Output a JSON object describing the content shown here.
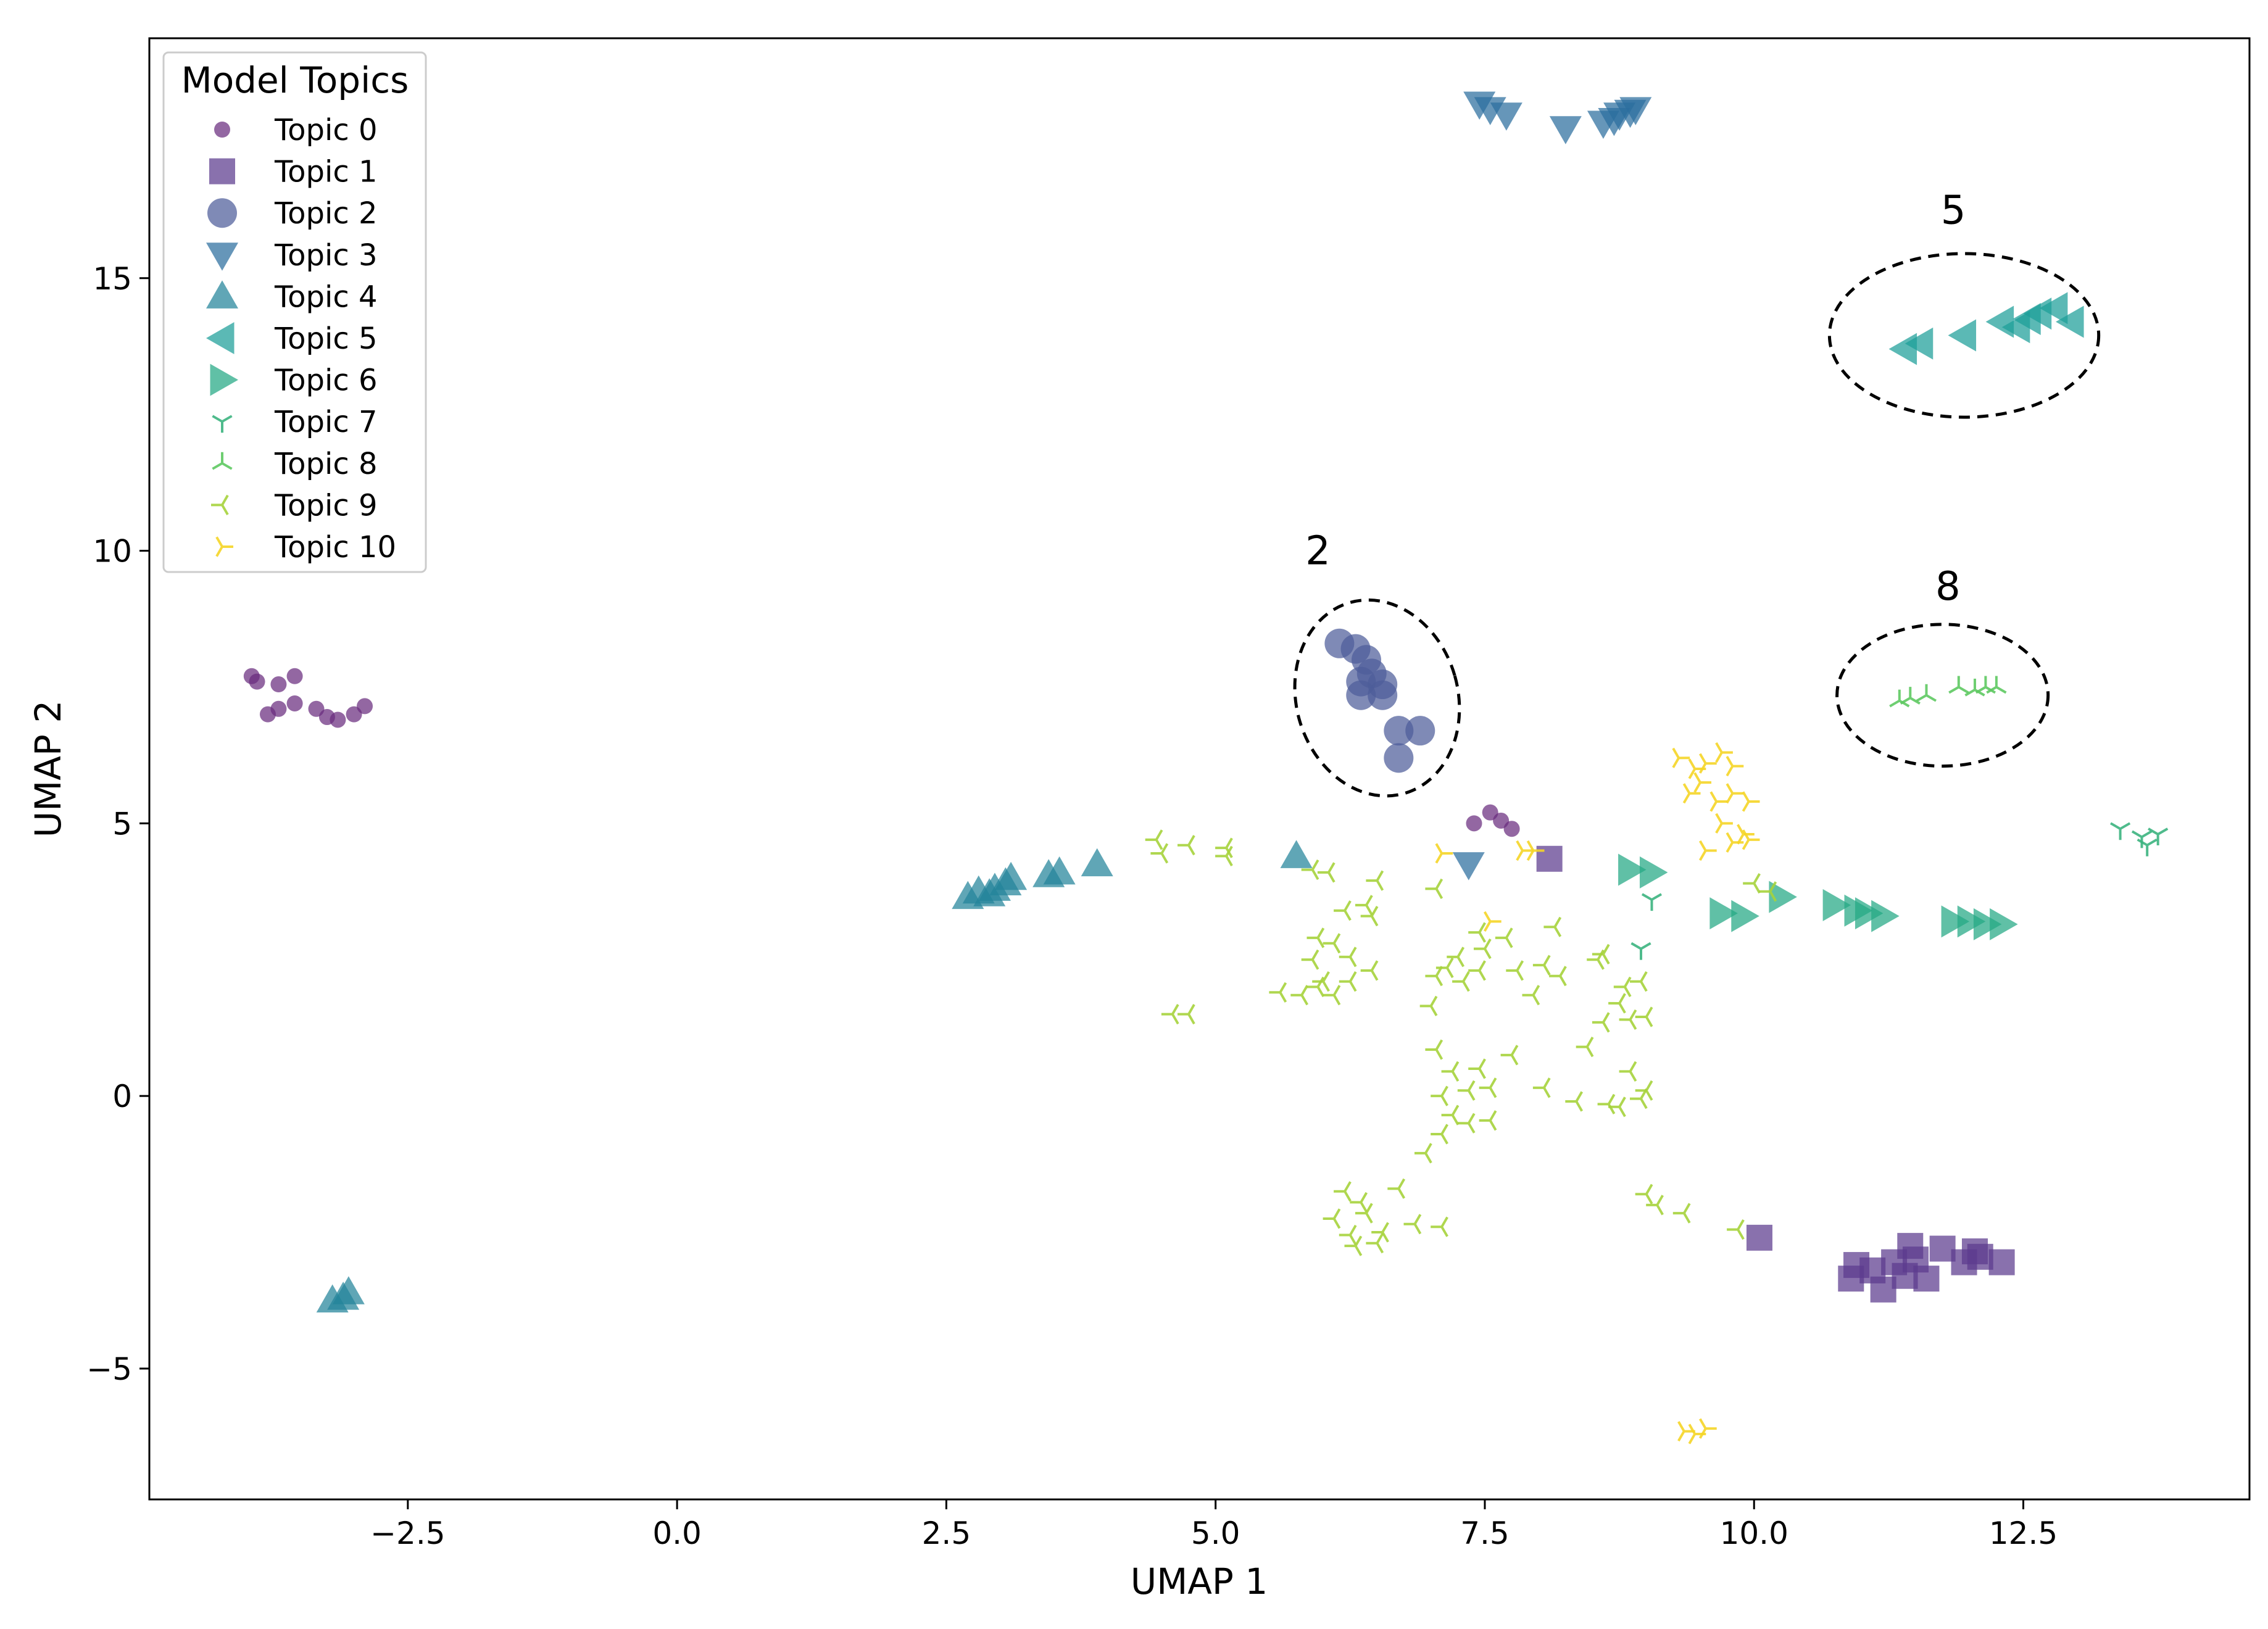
{
  "chart_data": {
    "type": "scatter",
    "xlabel": "UMAP 1",
    "ylabel": "UMAP 2",
    "xlim": [
      -4.9,
      14.6
    ],
    "ylim": [
      -7.4,
      19.4
    ],
    "xticks": [
      -2.5,
      0.0,
      2.5,
      5.0,
      7.5,
      10.0,
      12.5
    ],
    "xtick_labels": [
      "−2.5",
      "0.0",
      "2.5",
      "5.0",
      "7.5",
      "10.0",
      "12.5"
    ],
    "yticks": [
      -5,
      0,
      5,
      10,
      15
    ],
    "ytick_labels": [
      "−5",
      "0",
      "5",
      "10",
      "15"
    ],
    "legend": {
      "title": "Model Topics",
      "placement": "top-left"
    },
    "series": [
      {
        "name": "Topic 0",
        "marker": "circle-small",
        "color": "#6a2c7e",
        "points": [
          [
            -3.95,
            7.7
          ],
          [
            -3.9,
            7.6
          ],
          [
            -3.7,
            7.55
          ],
          [
            -3.55,
            7.7
          ],
          [
            -3.8,
            7.0
          ],
          [
            -3.7,
            7.1
          ],
          [
            -3.55,
            7.2
          ],
          [
            -3.35,
            7.1
          ],
          [
            -3.25,
            6.95
          ],
          [
            -3.15,
            6.9
          ],
          [
            -3.0,
            7.0
          ],
          [
            -2.9,
            7.15
          ],
          [
            7.4,
            5.0
          ],
          [
            7.55,
            5.2
          ],
          [
            7.65,
            5.05
          ],
          [
            7.75,
            4.9
          ]
        ]
      },
      {
        "name": "Topic 1",
        "marker": "square",
        "color": "#5b3a8e",
        "points": [
          [
            8.1,
            4.35
          ],
          [
            10.05,
            -2.6
          ],
          [
            10.95,
            -3.1
          ],
          [
            10.9,
            -3.35
          ],
          [
            11.1,
            -3.2
          ],
          [
            11.2,
            -3.55
          ],
          [
            11.3,
            -3.05
          ],
          [
            11.4,
            -3.3
          ],
          [
            11.45,
            -2.75
          ],
          [
            11.5,
            -3.0
          ],
          [
            11.6,
            -3.35
          ],
          [
            11.75,
            -2.8
          ],
          [
            11.95,
            -3.05
          ],
          [
            12.05,
            -2.85
          ],
          [
            12.1,
            -2.95
          ],
          [
            12.3,
            -3.05
          ]
        ]
      },
      {
        "name": "Topic 2",
        "marker": "circle",
        "color": "#4e5d9a",
        "points": [
          [
            6.15,
            8.3
          ],
          [
            6.3,
            8.2
          ],
          [
            6.4,
            8.0
          ],
          [
            6.45,
            7.75
          ],
          [
            6.35,
            7.6
          ],
          [
            6.55,
            7.55
          ],
          [
            6.35,
            7.35
          ],
          [
            6.55,
            7.35
          ],
          [
            6.7,
            6.7
          ],
          [
            6.9,
            6.7
          ],
          [
            6.7,
            6.2
          ]
        ]
      },
      {
        "name": "Topic 3",
        "marker": "triangle-down",
        "color": "#2b6e9e",
        "points": [
          [
            7.45,
            18.2
          ],
          [
            7.55,
            18.1
          ],
          [
            7.7,
            18.0
          ],
          [
            8.25,
            17.75
          ],
          [
            8.6,
            17.85
          ],
          [
            8.7,
            17.9
          ],
          [
            8.75,
            18.0
          ],
          [
            8.85,
            18.05
          ],
          [
            8.9,
            18.1
          ],
          [
            7.35,
            4.25
          ]
        ]
      },
      {
        "name": "Topic 4",
        "marker": "triangle-up",
        "color": "#23849a",
        "points": [
          [
            2.7,
            3.65
          ],
          [
            2.8,
            3.75
          ],
          [
            2.9,
            3.7
          ],
          [
            2.95,
            3.8
          ],
          [
            3.05,
            3.9
          ],
          [
            3.1,
            4.0
          ],
          [
            3.45,
            4.05
          ],
          [
            3.55,
            4.1
          ],
          [
            3.9,
            4.25
          ],
          [
            5.75,
            4.4
          ],
          [
            -3.2,
            -3.75
          ],
          [
            -3.1,
            -3.7
          ],
          [
            -3.05,
            -3.6
          ]
        ]
      },
      {
        "name": "Topic 5",
        "marker": "triangle-left",
        "color": "#1c9e98",
        "points": [
          [
            11.4,
            13.7
          ],
          [
            11.55,
            13.8
          ],
          [
            11.95,
            13.95
          ],
          [
            12.3,
            14.2
          ],
          [
            12.45,
            14.1
          ],
          [
            12.55,
            14.25
          ],
          [
            12.65,
            14.35
          ],
          [
            12.8,
            14.45
          ],
          [
            12.95,
            14.2
          ]
        ]
      },
      {
        "name": "Topic 6",
        "marker": "triangle-right",
        "color": "#22a884",
        "points": [
          [
            8.85,
            4.15
          ],
          [
            9.05,
            4.1
          ],
          [
            9.7,
            3.35
          ],
          [
            9.9,
            3.3
          ],
          [
            10.25,
            3.65
          ],
          [
            10.75,
            3.5
          ],
          [
            10.95,
            3.4
          ],
          [
            11.05,
            3.35
          ],
          [
            11.2,
            3.3
          ],
          [
            11.85,
            3.2
          ],
          [
            12.0,
            3.2
          ],
          [
            12.15,
            3.15
          ],
          [
            12.3,
            3.15
          ]
        ]
      },
      {
        "name": "Topic 7",
        "marker": "tri-down",
        "color": "#3cb47f",
        "points": [
          [
            13.4,
            4.9
          ],
          [
            13.6,
            4.75
          ],
          [
            13.75,
            4.8
          ],
          [
            13.65,
            4.6
          ],
          [
            9.05,
            3.6
          ],
          [
            8.95,
            2.7
          ]
        ]
      },
      {
        "name": "Topic 8",
        "marker": "tri-up",
        "color": "#5ec962",
        "points": [
          [
            11.35,
            7.25
          ],
          [
            11.45,
            7.3
          ],
          [
            11.6,
            7.35
          ],
          [
            11.9,
            7.5
          ],
          [
            12.05,
            7.45
          ],
          [
            12.15,
            7.5
          ],
          [
            12.25,
            7.5
          ]
        ]
      },
      {
        "name": "Topic 9",
        "marker": "tri-left",
        "color": "#a6d33c",
        "points": [
          [
            4.45,
            4.7
          ],
          [
            4.5,
            4.45
          ],
          [
            4.75,
            4.6
          ],
          [
            5.1,
            4.55
          ],
          [
            5.1,
            4.4
          ],
          [
            5.9,
            4.15
          ],
          [
            6.05,
            4.1
          ],
          [
            6.5,
            3.95
          ],
          [
            7.05,
            3.8
          ],
          [
            6.2,
            3.4
          ],
          [
            6.4,
            3.5
          ],
          [
            6.45,
            3.3
          ],
          [
            5.95,
            2.9
          ],
          [
            6.1,
            2.8
          ],
          [
            5.9,
            2.5
          ],
          [
            6.25,
            2.55
          ],
          [
            6.45,
            2.3
          ],
          [
            6.0,
            2.1
          ],
          [
            6.25,
            2.1
          ],
          [
            5.6,
            1.9
          ],
          [
            5.8,
            1.85
          ],
          [
            5.95,
            2.0
          ],
          [
            6.1,
            1.85
          ],
          [
            4.6,
            1.5
          ],
          [
            4.75,
            1.5
          ],
          [
            7.05,
            2.2
          ],
          [
            7.15,
            2.35
          ],
          [
            7.3,
            2.1
          ],
          [
            7.45,
            2.3
          ],
          [
            7.25,
            2.55
          ],
          [
            7.5,
            2.7
          ],
          [
            7.7,
            2.9
          ],
          [
            7.45,
            3.0
          ],
          [
            7.8,
            2.3
          ],
          [
            7.95,
            1.85
          ],
          [
            8.05,
            2.4
          ],
          [
            8.2,
            2.2
          ],
          [
            8.15,
            3.1
          ],
          [
            8.55,
            2.5
          ],
          [
            8.6,
            2.6
          ],
          [
            8.8,
            2.0
          ],
          [
            8.95,
            2.1
          ],
          [
            8.75,
            1.7
          ],
          [
            8.6,
            1.35
          ],
          [
            8.85,
            1.4
          ],
          [
            9.0,
            1.45
          ],
          [
            8.45,
            0.9
          ],
          [
            7.0,
            1.65
          ],
          [
            7.05,
            0.85
          ],
          [
            7.2,
            0.45
          ],
          [
            7.45,
            0.5
          ],
          [
            7.75,
            0.75
          ],
          [
            7.1,
            0.0
          ],
          [
            7.35,
            0.1
          ],
          [
            7.55,
            0.15
          ],
          [
            8.05,
            0.15
          ],
          [
            8.35,
            -0.1
          ],
          [
            8.65,
            -0.15
          ],
          [
            8.85,
            0.45
          ],
          [
            8.95,
            -0.05
          ],
          [
            9.0,
            0.1
          ],
          [
            8.75,
            -0.2
          ],
          [
            7.2,
            -0.35
          ],
          [
            7.35,
            -0.5
          ],
          [
            7.55,
            -0.45
          ],
          [
            7.1,
            -0.7
          ],
          [
            6.95,
            -1.05
          ],
          [
            6.2,
            -1.75
          ],
          [
            6.35,
            -1.95
          ],
          [
            6.7,
            -1.7
          ],
          [
            6.1,
            -2.25
          ],
          [
            6.4,
            -2.15
          ],
          [
            6.25,
            -2.55
          ],
          [
            6.3,
            -2.75
          ],
          [
            6.5,
            -2.7
          ],
          [
            6.55,
            -2.5
          ],
          [
            6.85,
            -2.35
          ],
          [
            7.1,
            -2.4
          ],
          [
            9.0,
            -1.8
          ],
          [
            9.1,
            -2.0
          ],
          [
            9.35,
            -2.15
          ],
          [
            9.85,
            -2.45
          ],
          [
            10.0,
            3.9
          ],
          [
            10.15,
            3.75
          ]
        ]
      },
      {
        "name": "Topic 10",
        "marker": "tri-right",
        "color": "#f5d527",
        "points": [
          [
            9.3,
            6.2
          ],
          [
            9.45,
            6.0
          ],
          [
            9.55,
            6.1
          ],
          [
            9.7,
            6.3
          ],
          [
            9.8,
            6.05
          ],
          [
            9.4,
            5.55
          ],
          [
            9.5,
            5.75
          ],
          [
            9.65,
            5.4
          ],
          [
            9.8,
            5.55
          ],
          [
            9.95,
            5.4
          ],
          [
            9.7,
            5.0
          ],
          [
            9.9,
            4.8
          ],
          [
            9.55,
            4.5
          ],
          [
            9.8,
            4.65
          ],
          [
            9.95,
            4.7
          ],
          [
            7.1,
            4.45
          ],
          [
            7.85,
            4.5
          ],
          [
            7.95,
            4.5
          ],
          [
            7.55,
            3.2
          ],
          [
            9.35,
            -6.15
          ],
          [
            9.45,
            -6.2
          ],
          [
            9.55,
            -6.1
          ]
        ]
      }
    ],
    "annotations": [
      {
        "label": "5",
        "x": 11.85,
        "y": 16.0,
        "ellipse": {
          "cx": 11.95,
          "cy": 13.95,
          "rx": 1.25,
          "ry": 1.5,
          "angle": 0
        }
      },
      {
        "label": "2",
        "x": 5.95,
        "y": 9.75,
        "ellipse": {
          "cx": 6.5,
          "cy": 7.3,
          "rx": 0.75,
          "ry": 1.82,
          "angle": -16
        }
      },
      {
        "label": "8",
        "x": 11.8,
        "y": 9.1,
        "ellipse": {
          "cx": 11.75,
          "cy": 7.35,
          "rx": 0.98,
          "ry": 1.3,
          "angle": 0
        }
      }
    ]
  }
}
